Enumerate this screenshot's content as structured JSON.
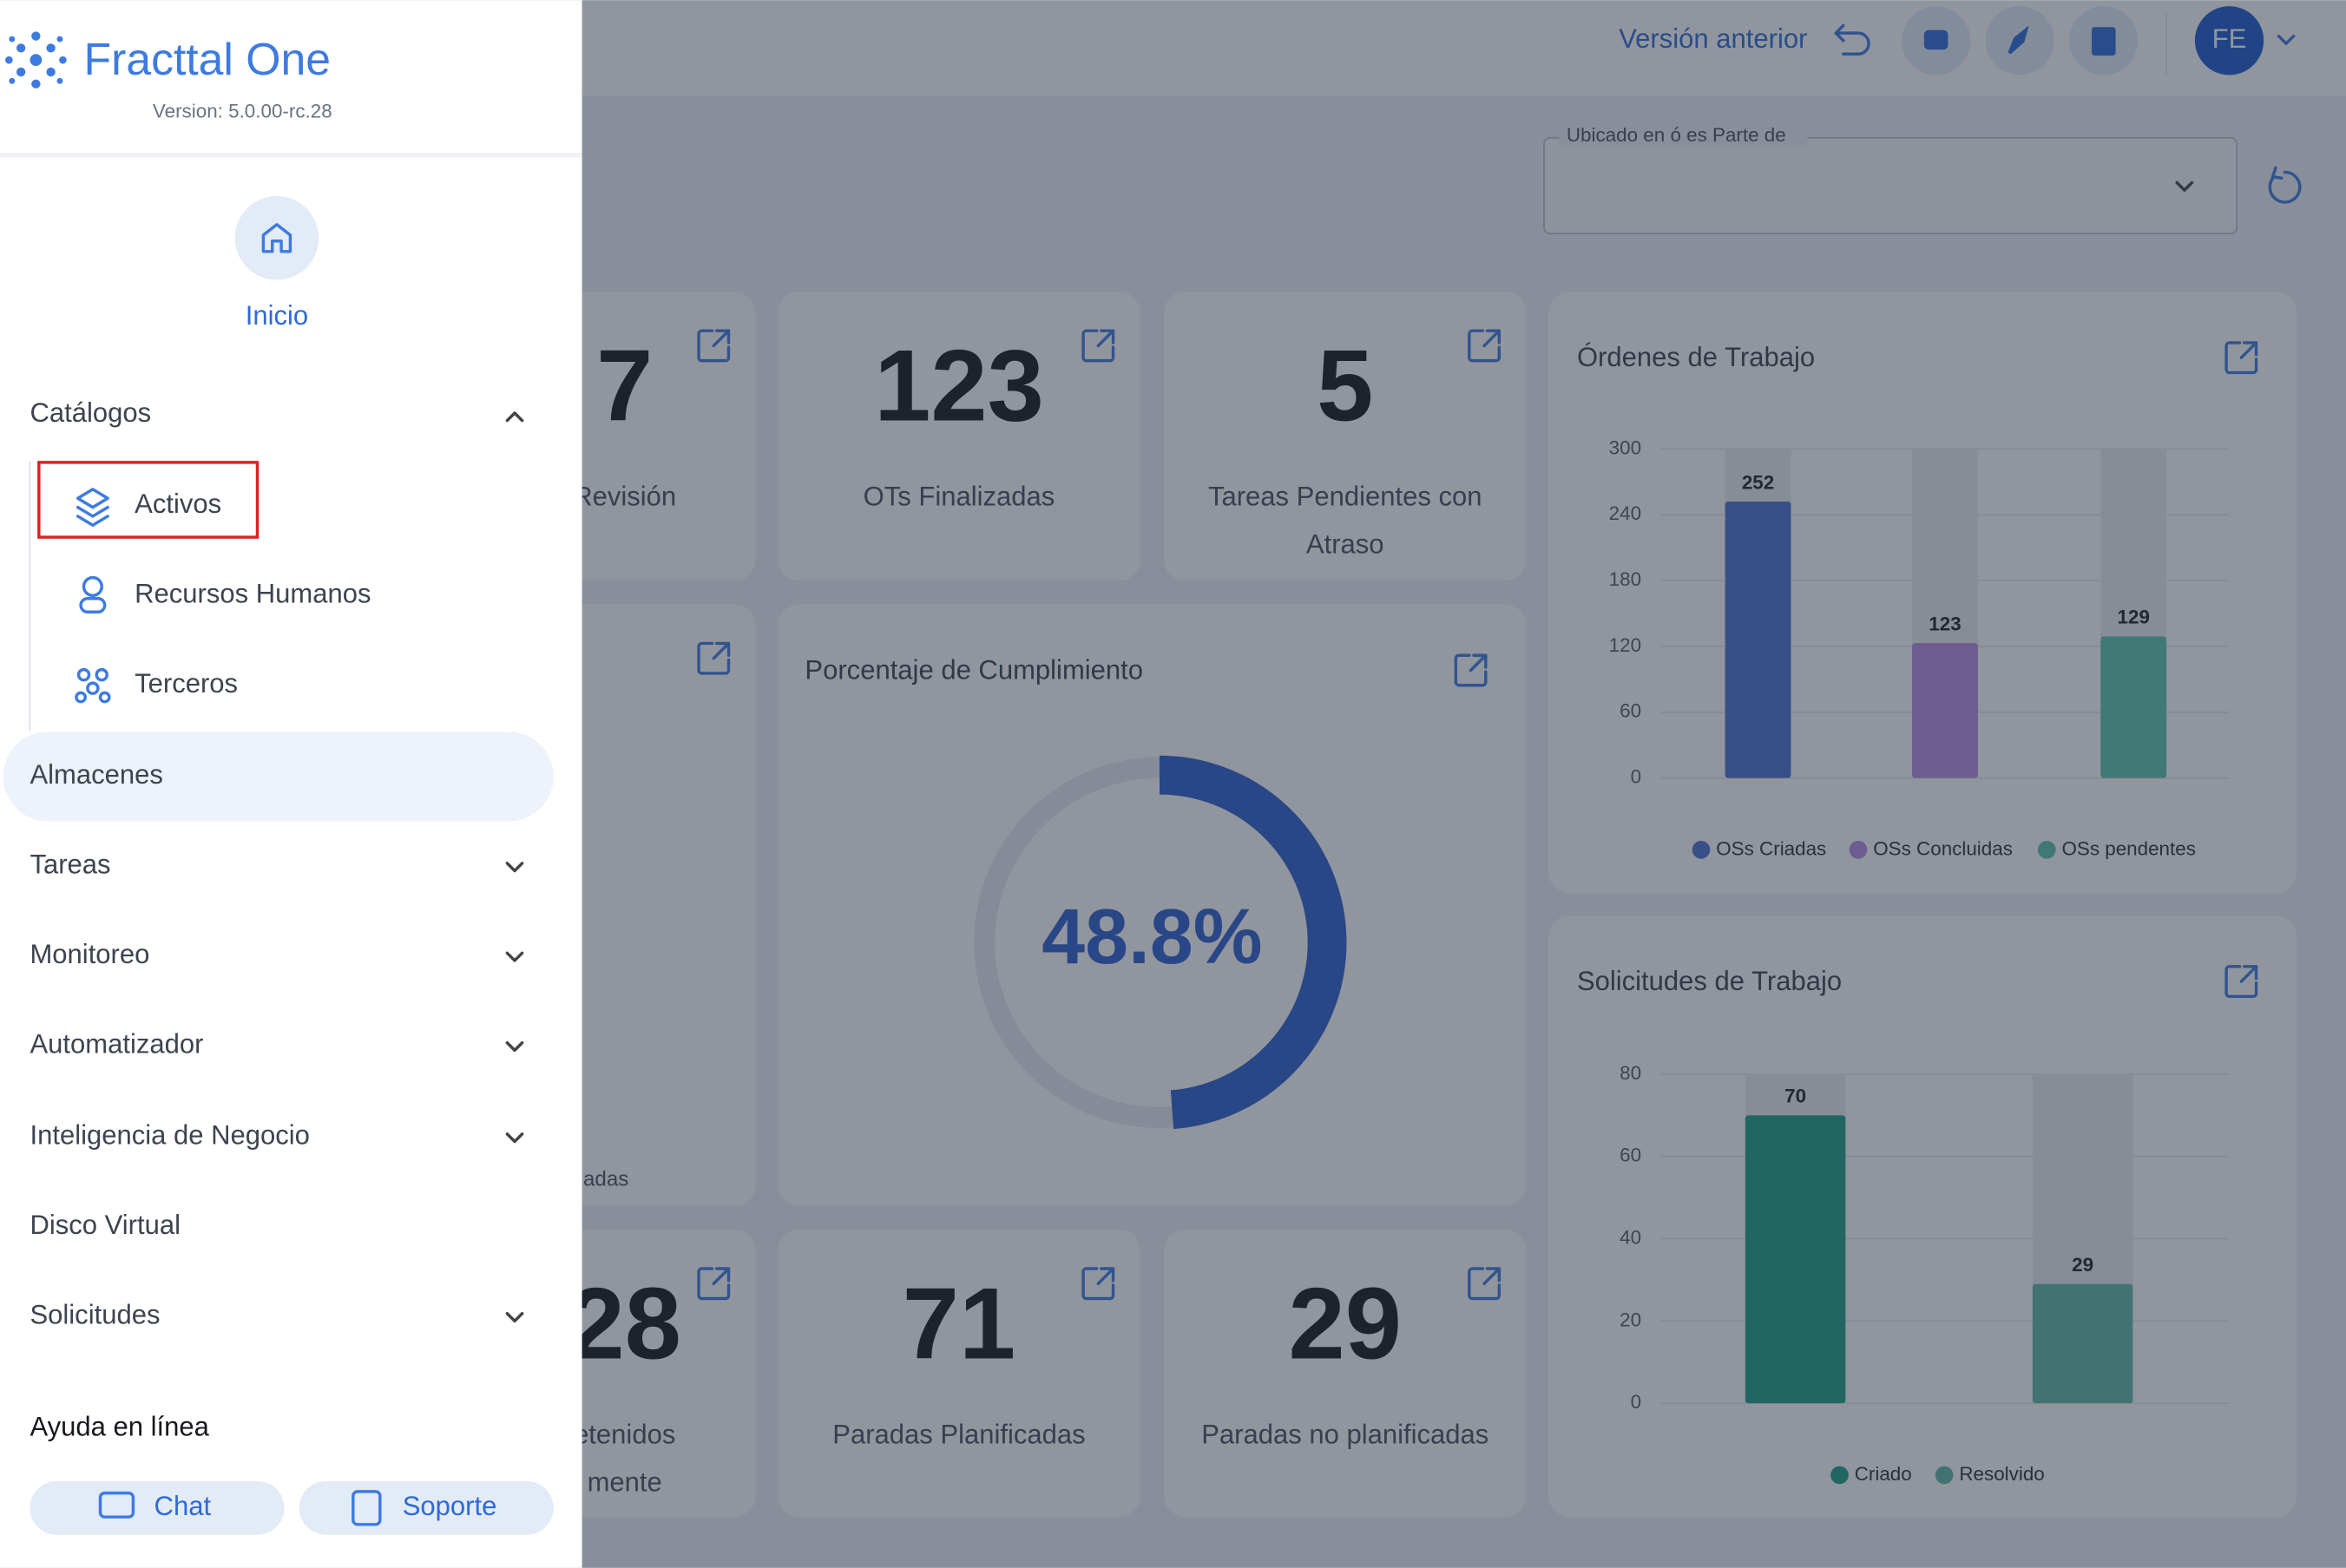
{
  "sidebar": {
    "brand": "Fracttal One",
    "version": "Version: 5.0.00-rc.28",
    "home": "Inicio",
    "catalog": "Catálogos",
    "catalog_items": [
      "Activos",
      "Recursos Humanos",
      "Terceros"
    ],
    "menu": [
      "Almacenes",
      "Tareas",
      "Monitoreo",
      "Automatizador",
      "Inteligencia de Negocio",
      "Disco Virtual",
      "Solicitudes"
    ],
    "help": "Ayuda en línea",
    "chat": "Chat",
    "support": "Soporte"
  },
  "header": {
    "previous_version": "Versión anterior",
    "user": "FE"
  },
  "filter": {
    "label": "Ubicado en ó es Parte de"
  },
  "cards": [
    {
      "value": "7",
      "label": [
        "Revisión"
      ]
    },
    {
      "value": "123",
      "label": [
        "OTs Finalizadas"
      ]
    },
    {
      "value": "5",
      "label": [
        "Tareas Pendientes con",
        "Atraso"
      ]
    },
    {
      "value": "",
      "label": [
        "adas"
      ]
    },
    {
      "value": "28",
      "label": [
        "etenidos",
        "mente"
      ]
    },
    {
      "value": "71",
      "label": [
        "Paradas Planificadas"
      ]
    },
    {
      "value": "29",
      "label": [
        "Paradas no planificadas"
      ]
    }
  ],
  "chart_data": [
    {
      "type": "bar",
      "title": "Órdenes de Trabajo",
      "categories": [
        "OSs Criadas",
        "OSs Concluidas",
        "OSs pendentes"
      ],
      "values": [
        252,
        123,
        129
      ],
      "colors": [
        "#4f70d2",
        "#b58be2",
        "#5cc3aa"
      ],
      "ylim": [
        0,
        300
      ],
      "yticks": [
        0,
        60,
        120,
        180,
        240,
        300
      ],
      "grid": true
    },
    {
      "type": "bar",
      "title": "Solicitudes de Trabajo",
      "categories": [
        "Criado",
        "Resolvido"
      ],
      "values": [
        70,
        29
      ],
      "colors": [
        "#1e9e86",
        "#63b6a8"
      ],
      "ylim": [
        0,
        80
      ],
      "yticks": [
        0,
        20,
        40,
        60,
        80
      ],
      "grid": true
    },
    {
      "type": "donut",
      "title": "Porcentaje de Cumplimiento",
      "values": [
        48.8
      ],
      "value_labels": [
        "48.8%"
      ],
      "color": "#2f5fcf"
    }
  ]
}
